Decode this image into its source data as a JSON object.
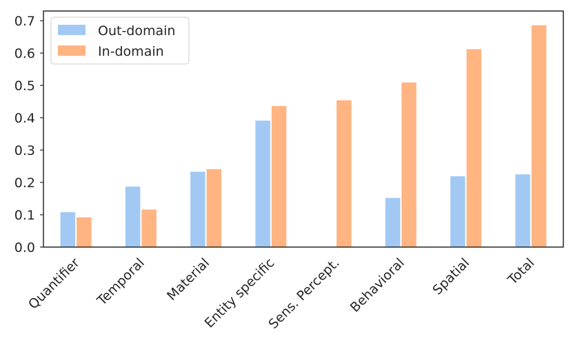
{
  "chart_data": {
    "type": "bar",
    "categories": [
      "Quantifier",
      "Temporal",
      "Material",
      "Entity specific",
      "Sens. Percept.",
      "Behavioral",
      "Spatial",
      "Total"
    ],
    "series": [
      {
        "name": "Out-domain",
        "color": "#a1c9f4",
        "values": [
          0.108,
          0.187,
          0.233,
          0.391,
          0.0,
          0.152,
          0.219,
          0.225
        ]
      },
      {
        "name": "In-domain",
        "color": "#ffb482",
        "values": [
          0.092,
          0.116,
          0.241,
          0.436,
          0.454,
          0.509,
          0.612,
          0.686
        ]
      }
    ],
    "ylim": [
      0,
      0.73
    ],
    "yticks": [
      "0.0",
      "0.1",
      "0.2",
      "0.3",
      "0.4",
      "0.5",
      "0.6",
      "0.7"
    ],
    "xlabel": "",
    "ylabel": "",
    "title": "",
    "grid": false,
    "legend_position": "top-left",
    "x_tick_rotation": 45
  }
}
